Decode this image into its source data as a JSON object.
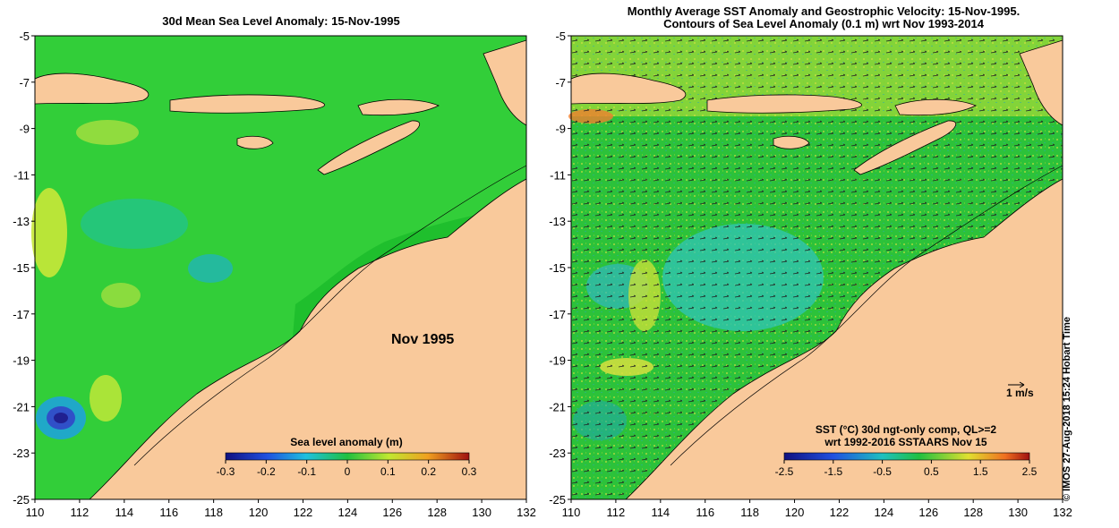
{
  "left_map": {
    "title": "30d Mean Sea Level Anomaly: 15-Nov-1995",
    "date_label": "Nov 1995",
    "colorbar_title": "Sea level anomaly (m)",
    "colorbar_ticks": [
      "-0.3",
      "-0.2",
      "-0.1",
      "0",
      "0.1",
      "0.2",
      "0.3"
    ]
  },
  "right_map": {
    "title_line1": "Monthly Average SST Anomaly  and Geostrophic Velocity: 15-Nov-1995.",
    "title_line2": "Contours of Sea Level Anomaly (0.1 m) wrt Nov 1993-2014",
    "scale_label": "1 m/s",
    "legend_line1": "SST (°C) 30d ngt-only comp, QL>=2",
    "legend_line2": "wrt 1992-2016 SSTAARS Nov 15",
    "colorbar_ticks": [
      "-2.5",
      "-1.5",
      "-0.5",
      "0.5",
      "1.5",
      "2.5"
    ]
  },
  "axes": {
    "y_ticks": [
      "-5",
      "-7",
      "-9",
      "-11",
      "-13",
      "-15",
      "-17",
      "-19",
      "-21",
      "-23",
      "-25"
    ],
    "x_ticks": [
      "110",
      "112",
      "114",
      "116",
      "118",
      "120",
      "122",
      "124",
      "126",
      "128",
      "130",
      "132"
    ]
  },
  "credit": "©  IMOS 27-Aug-2018 15:24 Hobart Time",
  "colors": {
    "land": "#f9c99b",
    "ocean_green": "#1fbf2d",
    "slope_green": "#37d13a",
    "cyan": "#2ec4b8",
    "yellow": "#c8e838",
    "blue": "#3040c0",
    "orange": "#f08030"
  }
}
